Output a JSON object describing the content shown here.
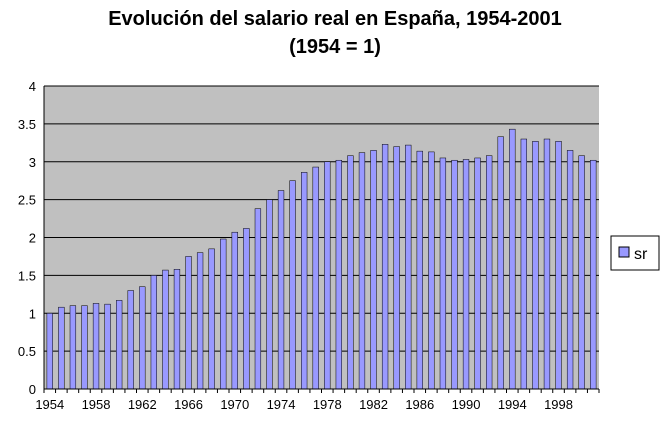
{
  "chart_data": {
    "type": "bar",
    "title": "Evolución del salario real en España, 1954-2001",
    "subtitle": "(1954 = 1)",
    "xlabel": "",
    "ylabel": "",
    "ylim": [
      0,
      4
    ],
    "yticks": [
      "0",
      "0.5",
      "1",
      "1.5",
      "2",
      "2.5",
      "3",
      "3.5",
      "4"
    ],
    "ytick_values": [
      0,
      0.5,
      1,
      1.5,
      2,
      2.5,
      3,
      3.5,
      4
    ],
    "xticks": [
      "1954",
      "1958",
      "1962",
      "1966",
      "1970",
      "1974",
      "1978",
      "1982",
      "1986",
      "1990",
      "1994",
      "1998"
    ],
    "categories": [
      1954,
      1955,
      1956,
      1957,
      1958,
      1959,
      1960,
      1961,
      1962,
      1963,
      1964,
      1965,
      1966,
      1967,
      1968,
      1969,
      1970,
      1971,
      1972,
      1973,
      1974,
      1975,
      1976,
      1977,
      1978,
      1979,
      1980,
      1981,
      1982,
      1983,
      1984,
      1985,
      1986,
      1987,
      1988,
      1989,
      1990,
      1991,
      1992,
      1993,
      1994,
      1995,
      1996,
      1997,
      1998,
      1999,
      2000,
      2001
    ],
    "series": [
      {
        "name": "sr",
        "color": "#9999ff",
        "values": [
          1.0,
          1.08,
          1.1,
          1.1,
          1.13,
          1.12,
          1.17,
          1.3,
          1.35,
          1.5,
          1.57,
          1.58,
          1.75,
          1.8,
          1.85,
          1.98,
          2.07,
          2.12,
          2.38,
          2.5,
          2.62,
          2.75,
          2.86,
          2.93,
          3.0,
          3.02,
          3.08,
          3.12,
          3.15,
          3.23,
          3.2,
          3.22,
          3.14,
          3.13,
          3.05,
          3.02,
          3.03,
          3.05,
          3.08,
          3.33,
          3.43,
          3.3,
          3.27,
          3.3,
          3.27,
          3.15,
          3.08,
          3.02
        ]
      }
    ],
    "grid": true,
    "legend_position": "right",
    "plot_background": "#c0c0c0"
  }
}
